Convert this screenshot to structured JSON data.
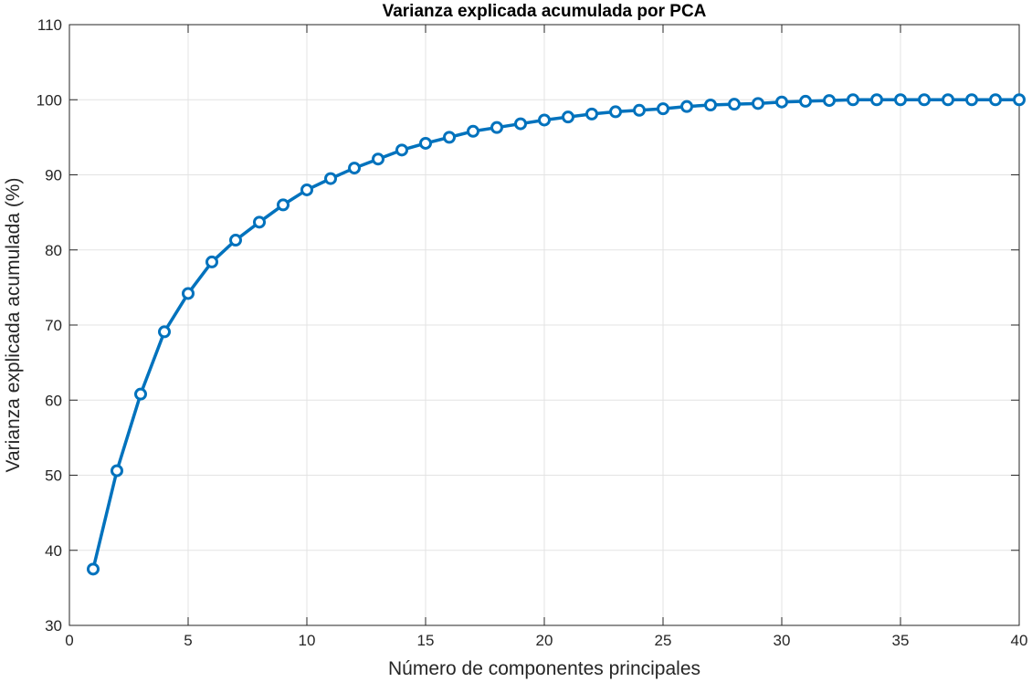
{
  "chart_data": {
    "type": "line",
    "title": "Varianza explicada acumulada por PCA",
    "xlabel": "Número de componentes principales",
    "ylabel": "Varianza explicada acumulada (%)",
    "xlim": [
      0,
      40
    ],
    "ylim": [
      30,
      110
    ],
    "xticks": [
      0,
      5,
      10,
      15,
      20,
      25,
      30,
      35,
      40
    ],
    "yticks": [
      30,
      40,
      50,
      60,
      70,
      80,
      90,
      100,
      110
    ],
    "grid": true,
    "series": [
      {
        "color": "#0072BD",
        "marker": "circle",
        "x": [
          1,
          2,
          3,
          4,
          5,
          6,
          7,
          8,
          9,
          10,
          11,
          12,
          13,
          14,
          15,
          16,
          17,
          18,
          19,
          20,
          21,
          22,
          23,
          24,
          25,
          26,
          27,
          28,
          29,
          30,
          31,
          32,
          33,
          34,
          35,
          36,
          37,
          38,
          39,
          40
        ],
        "y": [
          37.5,
          50.6,
          60.8,
          69.1,
          74.2,
          78.4,
          81.3,
          83.7,
          86.0,
          88.0,
          89.5,
          90.9,
          92.1,
          93.3,
          94.2,
          95.0,
          95.8,
          96.3,
          96.8,
          97.3,
          97.7,
          98.1,
          98.4,
          98.6,
          98.8,
          99.1,
          99.3,
          99.4,
          99.5,
          99.7,
          99.8,
          99.9,
          100.0,
          100.0,
          100.0,
          100.0,
          100.0,
          100.0,
          100.0,
          100.0
        ]
      }
    ]
  }
}
